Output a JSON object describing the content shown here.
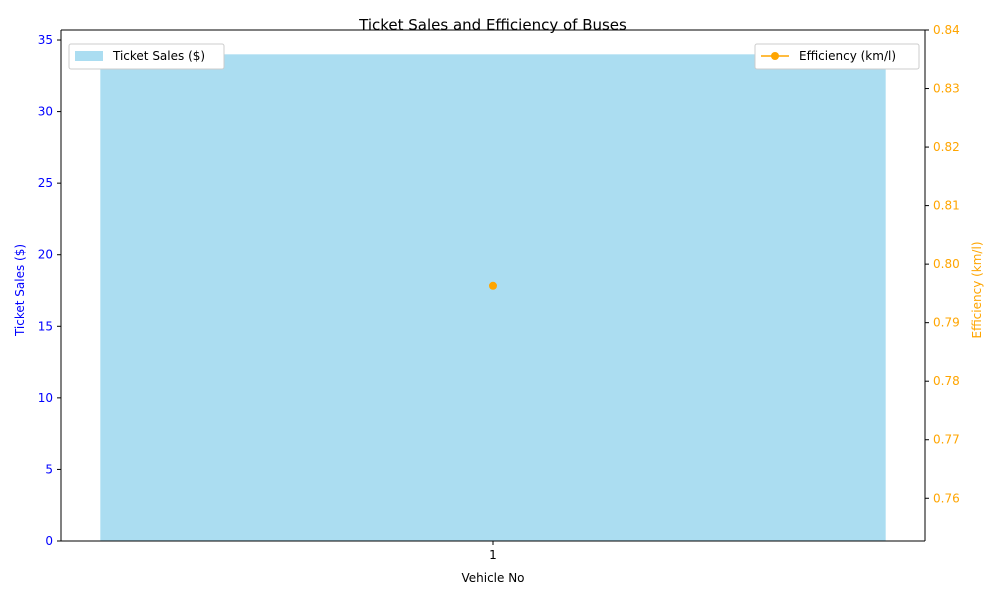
{
  "chart_data": {
    "type": "bar+line",
    "title": "Ticket Sales and Efficiency of Buses",
    "xlabel": "Vehicle No",
    "categories": [
      "1"
    ],
    "series": [
      {
        "name": "Ticket Sales ($)",
        "kind": "bar",
        "axis": "left",
        "values": [
          34
        ],
        "color": "#87ceeb"
      },
      {
        "name": "Efficiency (km/l)",
        "kind": "line",
        "axis": "right",
        "values": [
          0.7963
        ],
        "color": "#ffa500"
      }
    ],
    "y_left": {
      "label": "Ticket Sales ($)",
      "color": "#0000ff",
      "ylim": [
        0,
        35.7
      ],
      "ticks": [
        "0",
        "5",
        "10",
        "15",
        "20",
        "25",
        "30",
        "35"
      ]
    },
    "y_right": {
      "label": "Efficiency (km/l)",
      "color": "#ffa500",
      "ylim": [
        0.7527,
        0.84
      ],
      "ticks": [
        "0.76",
        "0.77",
        "0.78",
        "0.79",
        "0.80",
        "0.81",
        "0.82",
        "0.83",
        "0.84"
      ]
    },
    "legend_left": {
      "placement": "top-left",
      "label": "Ticket Sales ($)"
    },
    "legend_right": {
      "placement": "top-right",
      "label": "Efficiency (km/l)"
    },
    "grid": false
  }
}
